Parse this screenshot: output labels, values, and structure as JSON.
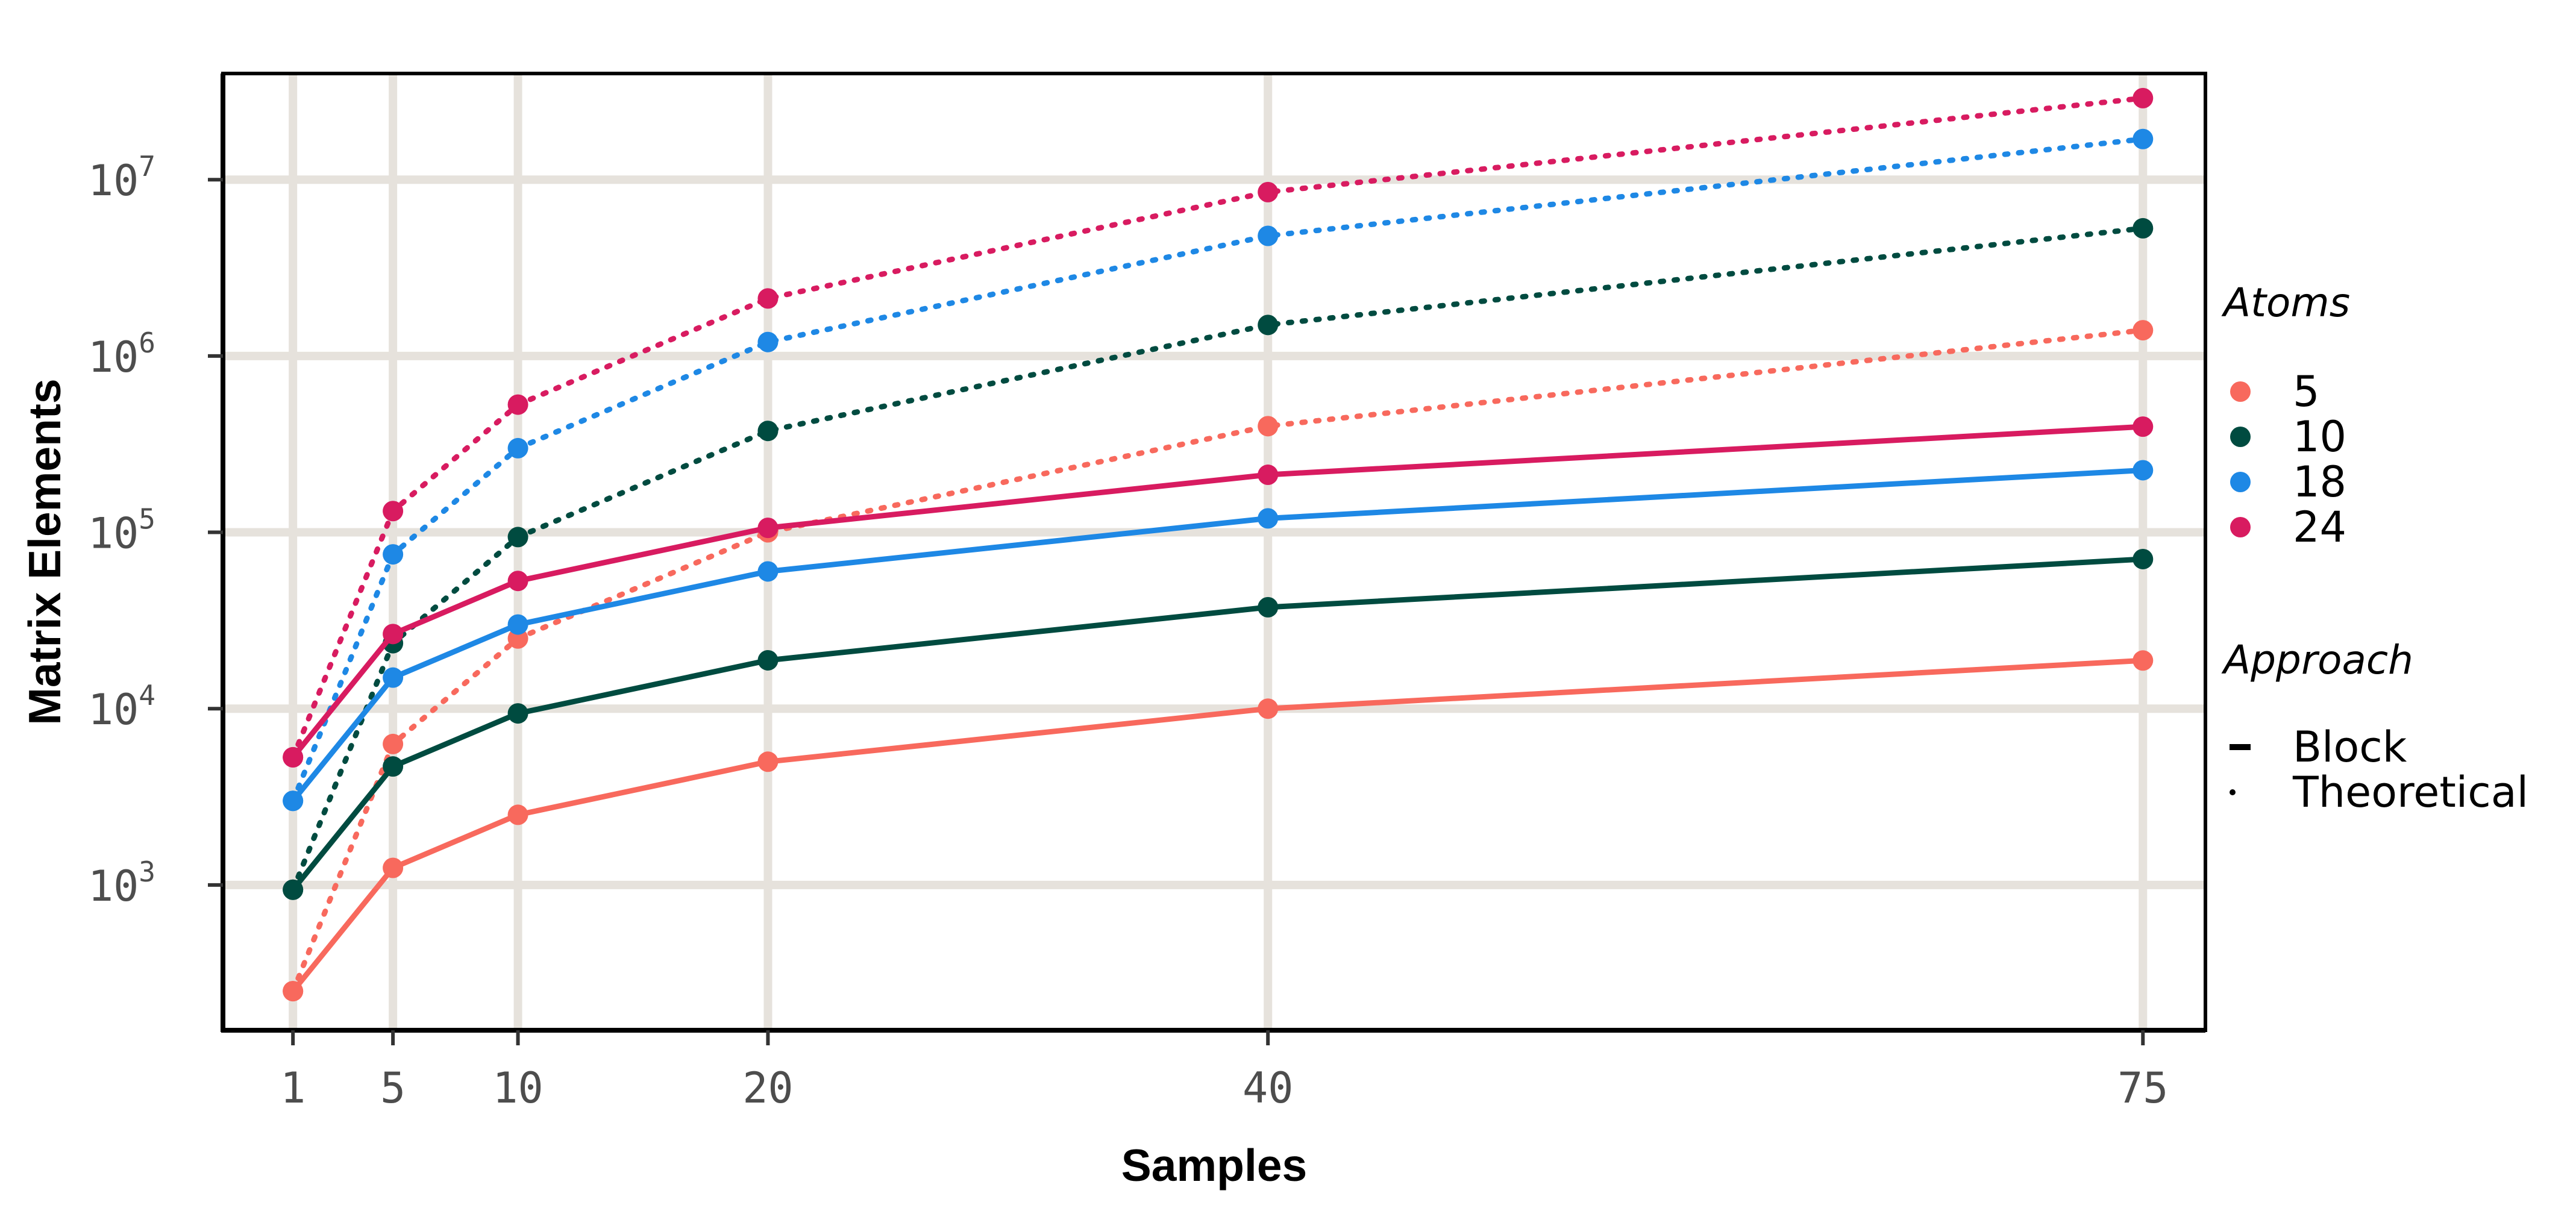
{
  "chart_data": {
    "type": "line",
    "title": "",
    "xlabel": "Samples",
    "ylabel": "Matrix Elements",
    "yscale": "log10",
    "ylim": [
      150,
      40000000
    ],
    "xlim": [
      -1.8,
      77.5
    ],
    "x": [
      1,
      5,
      10,
      20,
      40,
      75
    ],
    "x_tick_labels": [
      "1",
      "5",
      "10",
      "20",
      "40",
      "75"
    ],
    "y_ticks": [
      {
        "base": "10",
        "exp": "3",
        "value": 1000
      },
      {
        "base": "10",
        "exp": "4",
        "value": 10000
      },
      {
        "base": "10",
        "exp": "5",
        "value": 100000
      },
      {
        "base": "10",
        "exp": "6",
        "value": 1000000
      },
      {
        "base": "10",
        "exp": "7",
        "value": 10000000
      }
    ],
    "grid": true,
    "legend_position": "right",
    "legend": {
      "atoms_title": "Atoms",
      "atoms": [
        {
          "label": "5",
          "color": "#f8695d"
        },
        {
          "label": "10",
          "color": "#004b40"
        },
        {
          "label": "18",
          "color": "#1e88e5"
        },
        {
          "label": "24",
          "color": "#d81b60"
        }
      ],
      "approach_title": "Approach",
      "approaches": [
        {
          "label": "Block",
          "style": "solid"
        },
        {
          "label": "Theoretical",
          "style": "dotted"
        }
      ]
    },
    "series": [
      {
        "name": "5 Block",
        "atoms": "5",
        "approach": "Block",
        "color": "#f8695d",
        "values": [
          250,
          1250,
          2500,
          5000,
          10000,
          18750
        ]
      },
      {
        "name": "10 Block",
        "atoms": "10",
        "approach": "Block",
        "color": "#004b40",
        "values": [
          940,
          4700,
          9400,
          18800,
          37600,
          70500
        ]
      },
      {
        "name": "18 Block",
        "atoms": "18",
        "approach": "Block",
        "color": "#1e88e5",
        "values": [
          3000,
          15000,
          30000,
          60000,
          120000,
          225000
        ]
      },
      {
        "name": "24 Block",
        "atoms": "24",
        "approach": "Block",
        "color": "#d81b60",
        "values": [
          5300,
          26500,
          53000,
          106000,
          212000,
          397500
        ]
      },
      {
        "name": "5 Theoretical",
        "atoms": "5",
        "approach": "Theoretical",
        "color": "#f8695d",
        "values": [
          250,
          6300,
          25000,
          100000,
          400000,
          1400000
        ]
      },
      {
        "name": "10 Theoretical",
        "atoms": "10",
        "approach": "Theoretical",
        "color": "#004b40",
        "values": [
          940,
          23500,
          94000,
          376000,
          1500000,
          5300000
        ]
      },
      {
        "name": "18 Theoretical",
        "atoms": "18",
        "approach": "Theoretical",
        "color": "#1e88e5",
        "values": [
          3000,
          75000,
          300000,
          1200000,
          4800000,
          17000000
        ]
      },
      {
        "name": "24 Theoretical",
        "atoms": "24",
        "approach": "Theoretical",
        "color": "#d81b60",
        "values": [
          5300,
          132000,
          530000,
          2120000,
          8500000,
          29000000
        ]
      }
    ]
  }
}
